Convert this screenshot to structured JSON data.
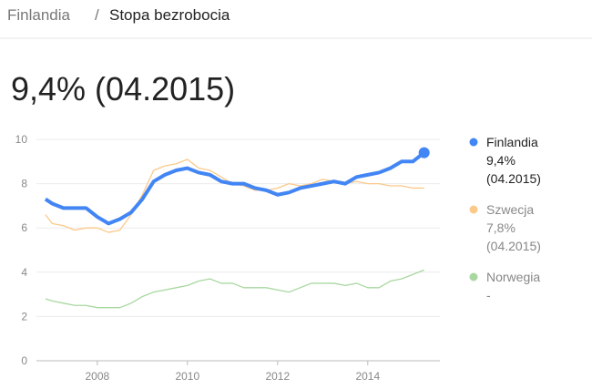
{
  "breadcrumb": {
    "country": "Finlandia",
    "separator": "/",
    "topic": "Stopa bezrobocia"
  },
  "headline": "9,4% (04.2015)",
  "chart_data": {
    "type": "line",
    "x": [
      2006.85,
      2007.0,
      2007.25,
      2007.5,
      2007.75,
      2008.0,
      2008.25,
      2008.5,
      2008.75,
      2009.0,
      2009.25,
      2009.5,
      2009.75,
      2010.0,
      2010.25,
      2010.5,
      2010.75,
      2011.0,
      2011.25,
      2011.5,
      2011.75,
      2012.0,
      2012.25,
      2012.5,
      2012.75,
      2013.0,
      2013.25,
      2013.5,
      2013.75,
      2014.0,
      2014.25,
      2014.5,
      2014.75,
      2015.0,
      2015.25
    ],
    "series": [
      {
        "name": "Finlandia",
        "color": "#4285f4",
        "value_label": "9,4%",
        "date_label": "(04.2015)",
        "values": [
          7.3,
          7.1,
          6.9,
          6.9,
          6.9,
          6.5,
          6.2,
          6.4,
          6.7,
          7.3,
          8.1,
          8.4,
          8.6,
          8.7,
          8.5,
          8.4,
          8.1,
          8.0,
          8.0,
          7.8,
          7.7,
          7.5,
          7.6,
          7.8,
          7.9,
          8.0,
          8.1,
          8.0,
          8.3,
          8.4,
          8.5,
          8.7,
          9.0,
          9.0,
          9.4
        ]
      },
      {
        "name": "Szwecja",
        "color": "#fbc98a",
        "value_label": "7,8%",
        "date_label": "(04.2015)",
        "values": [
          6.6,
          6.2,
          6.1,
          5.9,
          6.0,
          6.0,
          5.8,
          5.9,
          6.6,
          7.5,
          8.6,
          8.8,
          8.9,
          9.1,
          8.7,
          8.6,
          8.3,
          8.0,
          7.9,
          7.7,
          7.7,
          7.8,
          8.0,
          7.9,
          8.0,
          8.2,
          8.1,
          8.0,
          8.1,
          8.0,
          8.0,
          7.9,
          7.9,
          7.8,
          7.8
        ]
      },
      {
        "name": "Norwegia",
        "color": "#a8d8a0",
        "value_label": "-",
        "values": [
          2.8,
          2.7,
          2.6,
          2.5,
          2.5,
          2.4,
          2.4,
          2.4,
          2.6,
          2.9,
          3.1,
          3.2,
          3.3,
          3.4,
          3.6,
          3.7,
          3.5,
          3.5,
          3.3,
          3.3,
          3.3,
          3.2,
          3.1,
          3.3,
          3.5,
          3.5,
          3.5,
          3.4,
          3.5,
          3.3,
          3.3,
          3.6,
          3.7,
          3.9,
          4.1
        ]
      }
    ],
    "xlim": [
      2006.65,
      2015.6
    ],
    "xticks": [
      2008,
      2010,
      2012,
      2014
    ],
    "ylim": [
      0,
      10
    ],
    "yticks": [
      0,
      2,
      4,
      6,
      8,
      10
    ],
    "grid": true
  }
}
